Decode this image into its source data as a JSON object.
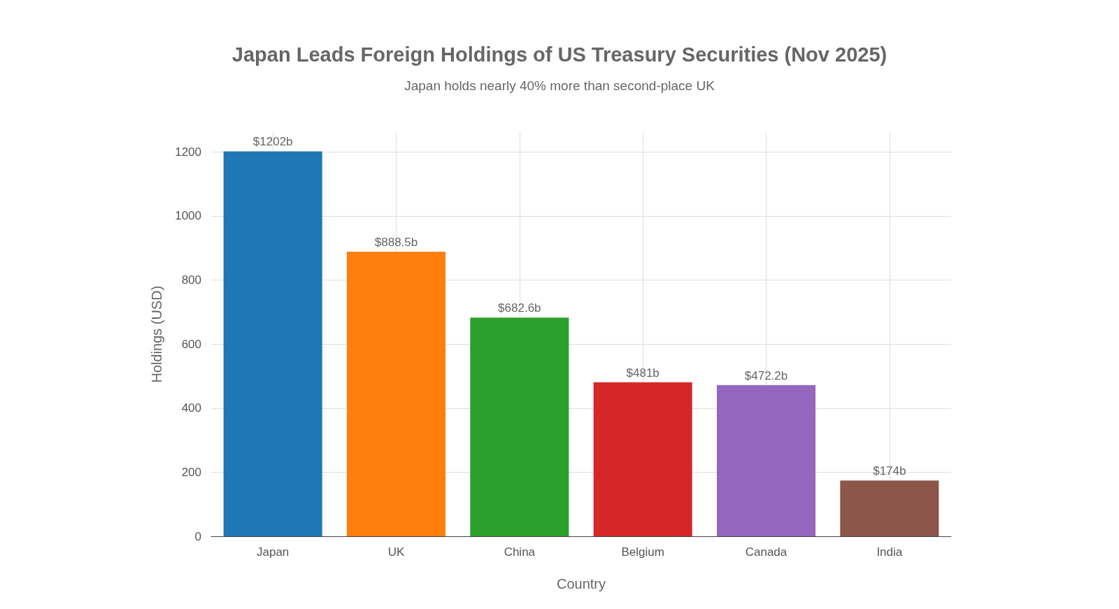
{
  "chart_data": {
    "type": "bar",
    "title": "Japan Leads Foreign Holdings of US Treasury Securities (Nov 2025)",
    "subtitle": "Japan holds nearly 40% more than second-place UK",
    "xlabel": "Country",
    "ylabel": "Holdings (USD)",
    "categories": [
      "Japan",
      "UK",
      "China",
      "Belgium",
      "Canada",
      "India"
    ],
    "values": [
      1202,
      888.5,
      682.6,
      481,
      472.2,
      174
    ],
    "colors": [
      "#1f77b4",
      "#ff7f0e",
      "#2ca02c",
      "#d62728",
      "#9467bd",
      "#8c564b"
    ],
    "value_labels": [
      "$1202b",
      "$888.5b",
      "$682.6b",
      "$481b",
      "$472.2b",
      "$174b"
    ],
    "ylim": [
      0,
      1262
    ],
    "yticks": [
      0,
      200,
      400,
      600,
      800,
      1000,
      1200
    ],
    "grid": true
  }
}
